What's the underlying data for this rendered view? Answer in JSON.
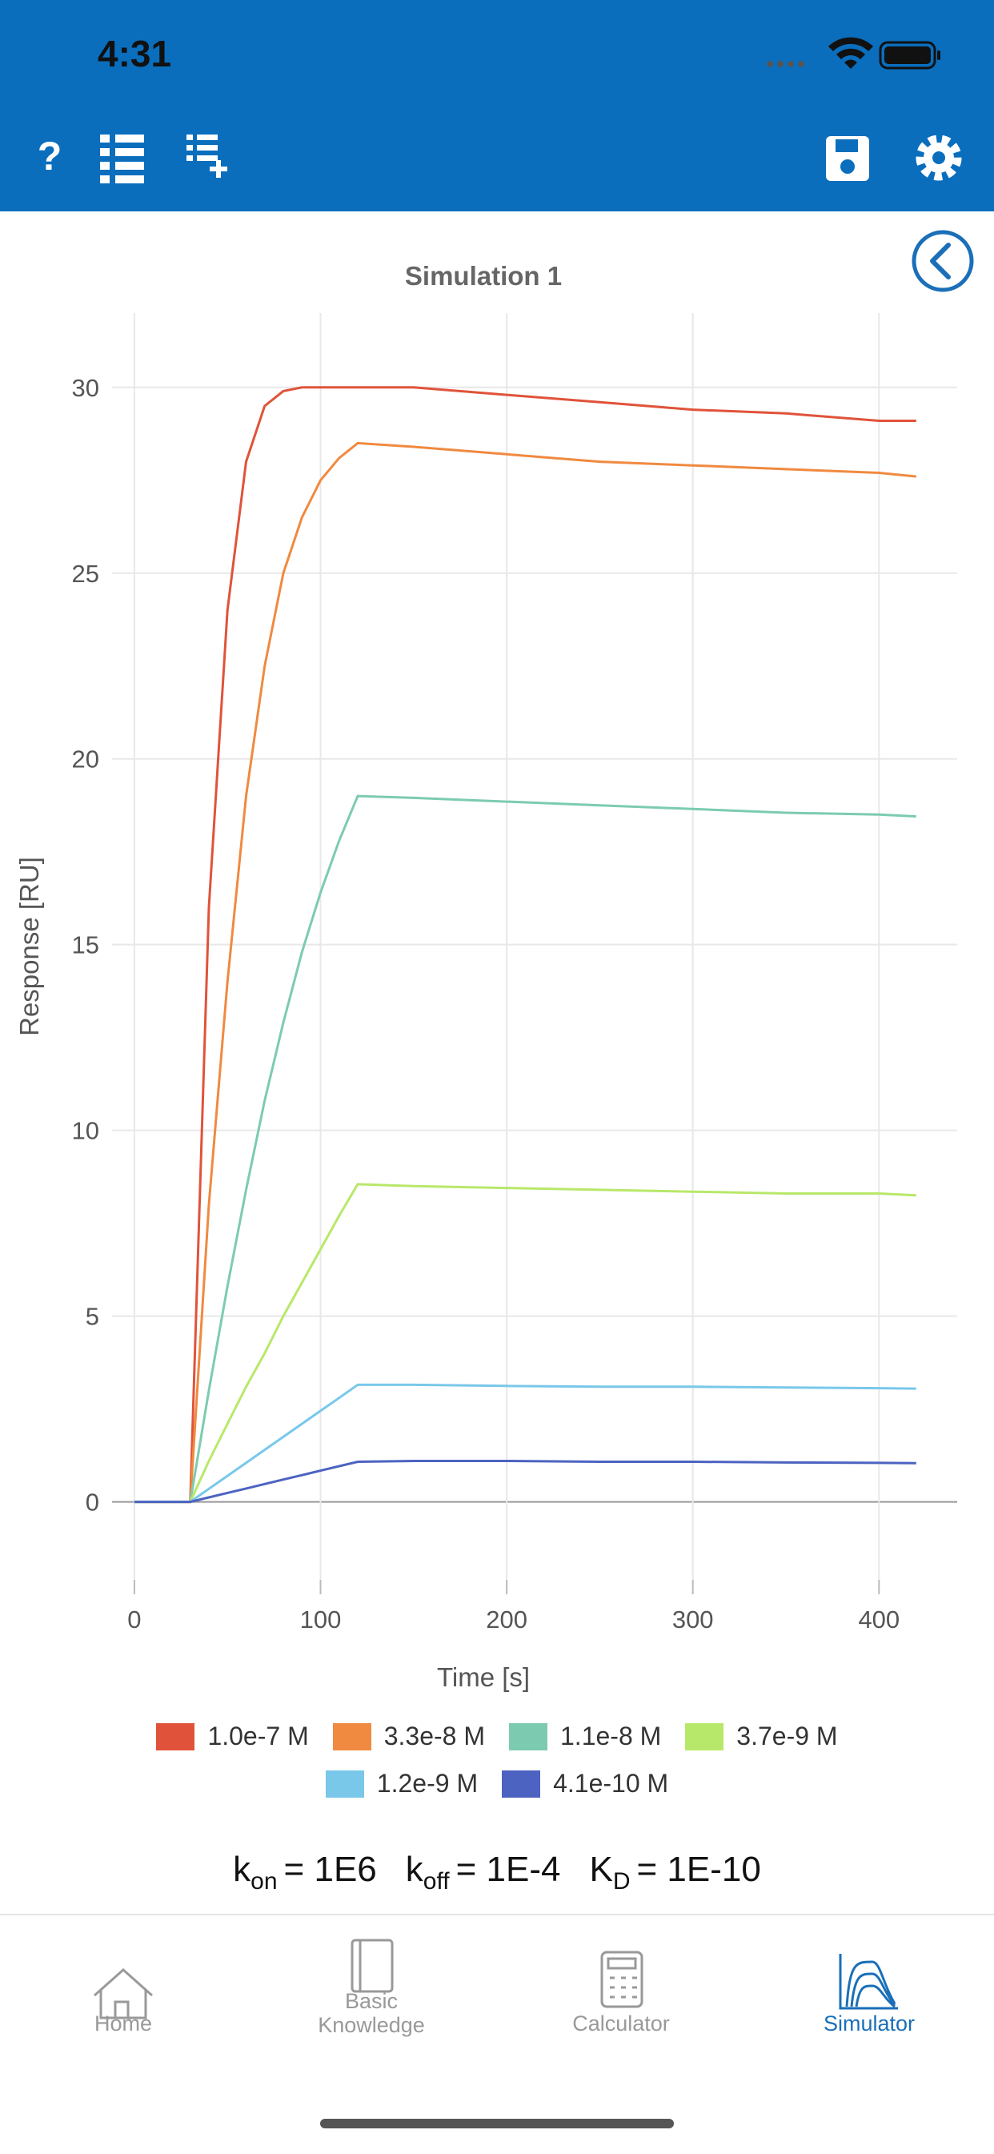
{
  "status_bar": {
    "time": "4:31"
  },
  "formula": [
    {
      "symbol": "k",
      "subscript": "on",
      "value": "= 1E6"
    },
    {
      "symbol": "k",
      "subscript": "off",
      "value": "= 1E-4"
    },
    {
      "symbol": "K",
      "subscript": "D",
      "value": "= 1E-10"
    }
  ],
  "tabs": [
    {
      "lines": [
        "Home"
      ],
      "active": false
    },
    {
      "lines": [
        "Basic",
        "Knowledge"
      ],
      "active": false
    },
    {
      "lines": [
        "Calculator"
      ],
      "active": false
    },
    {
      "lines": [
        "Simulator"
      ],
      "active": true
    }
  ],
  "toolbar": {
    "help_icon": "?"
  },
  "chart_data": {
    "type": "line",
    "title": "Simulation 1",
    "x_label": "Time [s]",
    "y_label": "Response [RU]",
    "x": [
      0,
      30,
      40,
      50,
      60,
      70,
      80,
      90,
      100,
      110,
      120,
      150,
      200,
      250,
      300,
      350,
      400,
      420
    ],
    "series": [
      {
        "name": "1.0e-7 M",
        "color": "#e0533a",
        "values": [
          0,
          0,
          16,
          24,
          28,
          29.5,
          29.9,
          30,
          30,
          30,
          30,
          30,
          29.8,
          29.6,
          29.4,
          29.3,
          29.1,
          29.1
        ]
      },
      {
        "name": "3.3e-8 M",
        "color": "#f08a40",
        "values": [
          0,
          0,
          8,
          14,
          19,
          22.5,
          25,
          26.5,
          27.5,
          28.1,
          28.5,
          28.4,
          28.2,
          28,
          27.9,
          27.8,
          27.7,
          27.6
        ]
      },
      {
        "name": "1.1e-8 M",
        "color": "#7ccbb0",
        "values": [
          0,
          0,
          3,
          5.8,
          8.4,
          10.8,
          12.9,
          14.8,
          16.4,
          17.8,
          19,
          18.95,
          18.85,
          18.75,
          18.65,
          18.55,
          18.5,
          18.45
        ]
      },
      {
        "name": "3.7e-9 M",
        "color": "#b8e86a",
        "values": [
          0,
          0,
          1.1,
          2.1,
          3.1,
          4,
          5,
          5.9,
          6.8,
          7.7,
          8.55,
          8.5,
          8.45,
          8.4,
          8.35,
          8.3,
          8.3,
          8.25
        ]
      },
      {
        "name": "1.2e-9 M",
        "color": "#79c8ea",
        "values": [
          0,
          0,
          0.35,
          0.7,
          1.05,
          1.4,
          1.75,
          2.1,
          2.45,
          2.8,
          3.15,
          3.15,
          3.12,
          3.1,
          3.1,
          3.08,
          3.06,
          3.05
        ]
      },
      {
        "name": "4.1e-10 M",
        "color": "#4d63c1",
        "values": [
          0,
          0,
          0.12,
          0.24,
          0.36,
          0.48,
          0.6,
          0.72,
          0.84,
          0.96,
          1.08,
          1.1,
          1.1,
          1.08,
          1.08,
          1.06,
          1.05,
          1.04
        ]
      }
    ],
    "xlim": [
      -12,
      442
    ],
    "ylim": [
      -2.1,
      32
    ],
    "xticks": [
      0,
      100,
      200,
      300,
      400
    ],
    "yticks": [
      0,
      5,
      10,
      15,
      20,
      25,
      30
    ],
    "grid": true
  }
}
